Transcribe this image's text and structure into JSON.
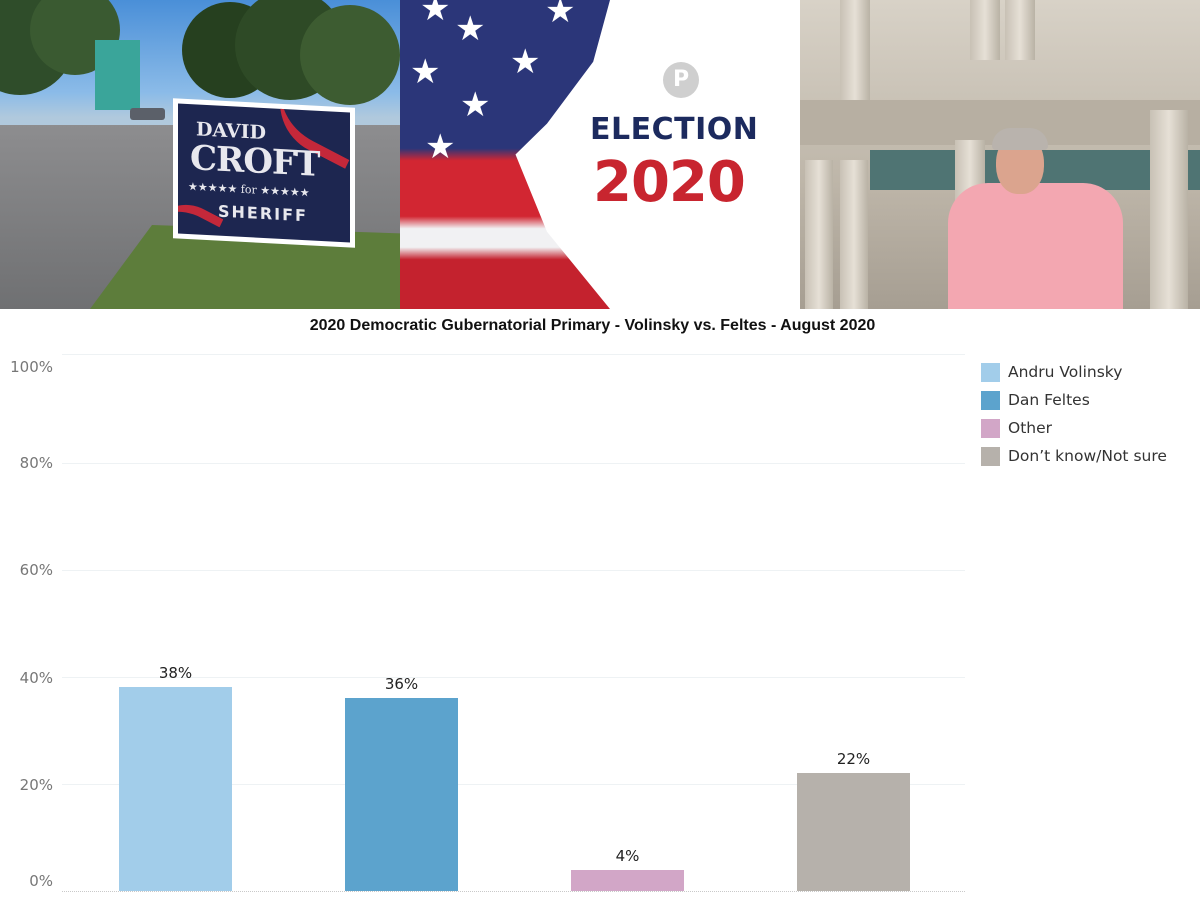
{
  "banner": {
    "sign": {
      "line1": "DAVID",
      "line2": "CROFT",
      "line3": "★★★★★ for ★★★★★",
      "line4": "SHERIFF"
    },
    "election": {
      "logo": "P",
      "title": "ELECTION",
      "year": "2020"
    }
  },
  "colors": {
    "volinsky": "#a2cdea",
    "feltes": "#5ca3cd",
    "other": "#d2a6c7",
    "dont_know": "#b6b1ab"
  },
  "chart_data": {
    "type": "bar",
    "title": "2020 Democratic Gubernatorial Primary - Volinsky vs. Feltes - August 2020",
    "categories": [
      "Andru Volinsky",
      "Dan Feltes",
      "Other",
      "Don’t know/Not sure"
    ],
    "values": [
      38,
      36,
      4,
      22
    ],
    "value_labels": [
      "38%",
      "36%",
      "4%",
      "22%"
    ],
    "xlabel": "",
    "ylabel": "",
    "ylim": [
      0,
      100
    ],
    "yticks": [
      "100%",
      "80%",
      "60%",
      "40%",
      "20%",
      "0%"
    ],
    "grid": true,
    "legend_position": "right",
    "legend": [
      "Andru Volinsky",
      "Dan Feltes",
      "Other",
      "Don’t know/Not sure"
    ]
  }
}
